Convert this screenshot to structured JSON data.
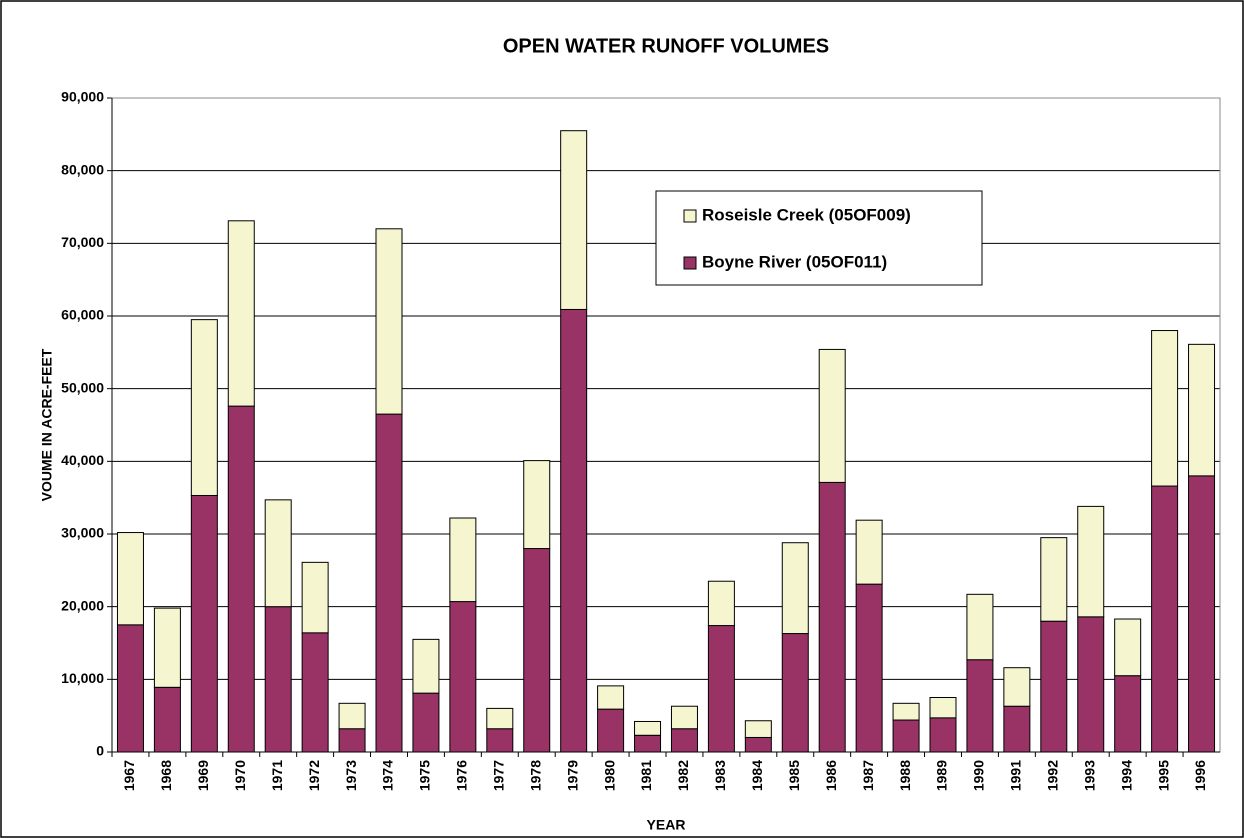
{
  "chart_data": {
    "type": "stacked_bar",
    "title": "OPEN WATER RUNOFF VOLUMES",
    "x_label": "YEAR",
    "y_label": "VOUME IN ACRE-FEET",
    "categories": [
      "1967",
      "1968",
      "1969",
      "1970",
      "1971",
      "1972",
      "1973",
      "1974",
      "1975",
      "1976",
      "1977",
      "1978",
      "1979",
      "1980",
      "1981",
      "1982",
      "1983",
      "1984",
      "1985",
      "1986",
      "1987",
      "1988",
      "1989",
      "1990",
      "1991",
      "1992",
      "1993",
      "1994",
      "1995",
      "1996"
    ],
    "series": [
      {
        "name": "Boyne River (05OF011)",
        "color": "#993366",
        "values": [
          17500,
          8900,
          35300,
          47600,
          20000,
          16400,
          3200,
          46500,
          8100,
          20700,
          3200,
          28000,
          60900,
          5900,
          2300,
          3200,
          17400,
          2000,
          16300,
          37100,
          23100,
          4400,
          4700,
          12700,
          6300,
          18000,
          18600,
          10500,
          36600,
          38000
        ]
      },
      {
        "name": "Roseisle Creek (05OF009)",
        "color": "#f5f5cf",
        "values": [
          12700,
          10900,
          24200,
          25500,
          14700,
          9700,
          3500,
          25500,
          7400,
          11500,
          2800,
          12100,
          24600,
          3200,
          1900,
          3100,
          6100,
          2300,
          12500,
          18300,
          8800,
          2300,
          2800,
          9000,
          5300,
          11500,
          15200,
          7800,
          21400,
          18100
        ]
      }
    ],
    "ylim": [
      0,
      90000
    ],
    "yticks": [
      0,
      {
        "value": 10000,
        "label": "10,000"
      },
      {
        "value": 20000,
        "label": "20,000"
      },
      {
        "value": 30000,
        "label": "30,000"
      },
      {
        "value": 40000,
        "label": "40,000"
      },
      {
        "value": 50000,
        "label": "50,000"
      },
      {
        "value": 60000,
        "label": "60,000"
      },
      {
        "value": 70000,
        "label": "70,000"
      },
      {
        "value": 80000,
        "label": "80,000"
      },
      {
        "value": 90000,
        "label": "90,000"
      }
    ],
    "grid": true,
    "legend": "upper-right"
  }
}
